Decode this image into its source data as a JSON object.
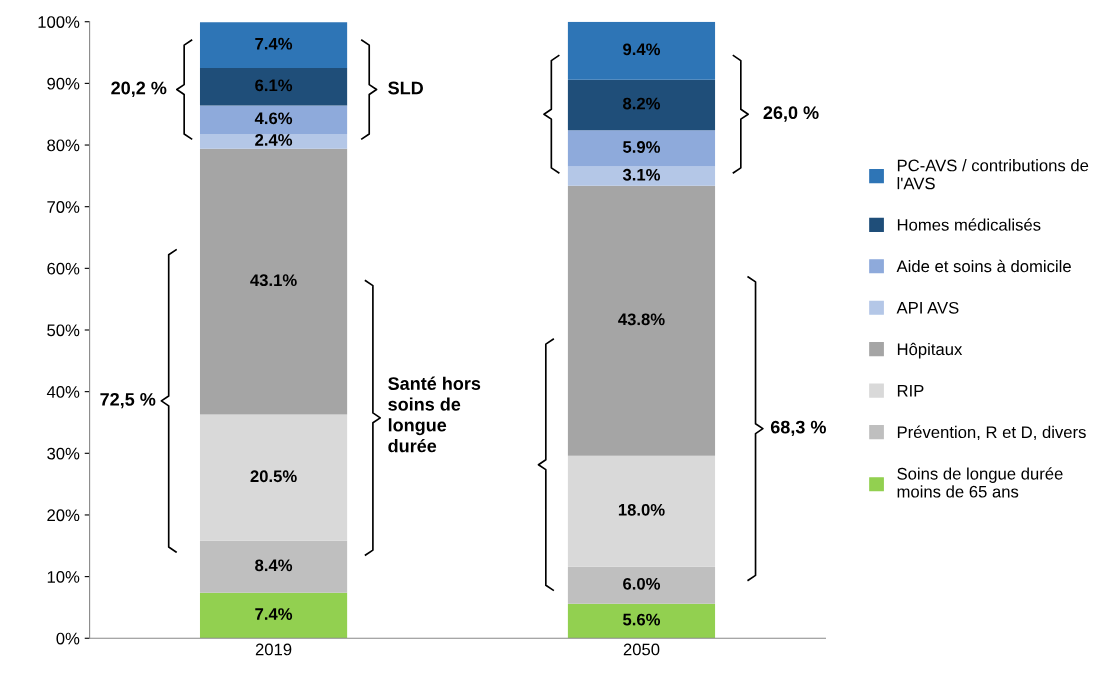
{
  "chart_data": {
    "type": "bar",
    "stacked": true,
    "categories": [
      "2019",
      "2050"
    ],
    "ylim": [
      0,
      100
    ],
    "yticks": [
      {
        "value": 0,
        "label": "0%"
      },
      {
        "value": 10,
        "label": "10%"
      },
      {
        "value": 20,
        "label": "20%"
      },
      {
        "value": 30,
        "label": "30%"
      },
      {
        "value": 40,
        "label": "40%"
      },
      {
        "value": 50,
        "label": "50%"
      },
      {
        "value": 60,
        "label": "60%"
      },
      {
        "value": 70,
        "label": "70%"
      },
      {
        "value": 80,
        "label": "80%"
      },
      {
        "value": 90,
        "label": "90%"
      },
      {
        "value": 100,
        "label": "100%"
      }
    ],
    "legend": "right",
    "grid": false,
    "series": [
      {
        "name": "Soins de longue durée\nmoins de 65 ans",
        "color": "#92d050",
        "values": [
          7.4,
          5.6
        ],
        "value_labels": [
          "7.4%",
          "5.6%"
        ]
      },
      {
        "name": "Prévention, R et D, divers",
        "color": "#bfbfbf",
        "values": [
          8.4,
          6.0
        ],
        "value_labels": [
          "8.4%",
          "6.0%"
        ]
      },
      {
        "name": "RIP",
        "color": "#d9d9d9",
        "values": [
          20.5,
          18.0
        ],
        "value_labels": [
          "20.5%",
          "18.0%"
        ]
      },
      {
        "name": "Hôpitaux",
        "color": "#a5a5a5",
        "values": [
          43.1,
          43.8
        ],
        "value_labels": [
          "43.1%",
          "43.8%"
        ]
      },
      {
        "name": "API AVS",
        "color": "#b4c7e7",
        "values": [
          2.4,
          3.1
        ],
        "value_labels": [
          "2.4%",
          "3.1%"
        ]
      },
      {
        "name": "Aide et soins à domicile",
        "color": "#8eaadb",
        "values": [
          4.6,
          5.9
        ],
        "value_labels": [
          "4.6%",
          "5.9%"
        ]
      },
      {
        "name": "Homes médicalisés",
        "color": "#1f4e79",
        "values": [
          6.1,
          8.2
        ],
        "value_labels": [
          "6.1%",
          "8.2%"
        ]
      },
      {
        "name": "PC-AVS / contributions de\nl'AVS",
        "color": "#2e75b6",
        "values": [
          7.4,
          9.4
        ],
        "value_labels": [
          "7.4%",
          "9.4%"
        ]
      }
    ],
    "annotations": [
      "20,2 %",
      "SLD",
      "72,5 %",
      "Santé hors\nsoins de\nlongue\ndurée",
      "26,0 %",
      "68,3 %"
    ]
  }
}
